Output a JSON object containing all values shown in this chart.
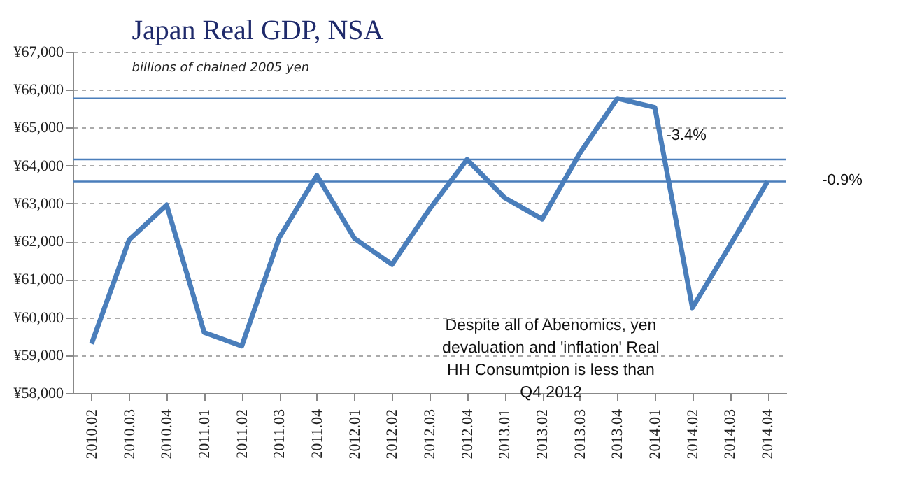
{
  "chart_data": {
    "type": "line",
    "title": "Japan Real GDP, NSA",
    "subtitle": "billions of chained 2005 yen",
    "categories": [
      "2010.02",
      "2010.03",
      "2010.04",
      "2011.01",
      "2011.02",
      "2011.03",
      "2011.04",
      "2012.01",
      "2012.02",
      "2012.03",
      "2012.04",
      "2013.01",
      "2013.02",
      "2013.03",
      "2013.04",
      "2014.01",
      "2014.02",
      "2014.03",
      "2014.04"
    ],
    "series": [
      {
        "color": "#4a7ebb",
        "values": [
          59300,
          62040,
          62960,
          59600,
          59240,
          62100,
          63740,
          62080,
          61390,
          62850,
          64160,
          63150,
          62590,
          64320,
          65770,
          65530,
          60250,
          61890,
          63580
        ]
      }
    ],
    "ylim": [
      58000,
      67000
    ],
    "yticks": [
      {
        "value": 58000,
        "label": "¥58,000"
      },
      {
        "value": 59000,
        "label": "¥59,000"
      },
      {
        "value": 60000,
        "label": "¥60,000"
      },
      {
        "value": 61000,
        "label": "¥61,000"
      },
      {
        "value": 62000,
        "label": "¥62,000"
      },
      {
        "value": 63000,
        "label": "¥63,000"
      },
      {
        "value": 64000,
        "label": "¥64,000"
      },
      {
        "value": 65000,
        "label": "¥65,000"
      },
      {
        "value": 66000,
        "label": "¥66,000"
      },
      {
        "value": 67000,
        "label": "¥67,000"
      }
    ],
    "grid": "y",
    "marker": "none",
    "line_style": "solid",
    "ref_lines": [
      {
        "axis": "y",
        "value": 65770,
        "color": "#4a7ebb"
      },
      {
        "axis": "y",
        "value": 64160,
        "color": "#4a7ebb"
      },
      {
        "axis": "y",
        "value": 63580,
        "color": "#4a7ebb"
      }
    ],
    "annotations": [
      "-3.4%",
      "-0.9%",
      "Despite all of Abenomics, yen\ndevaluation and 'inflation' Real\nHH Consumtpion is less than\nQ4 2012"
    ]
  }
}
